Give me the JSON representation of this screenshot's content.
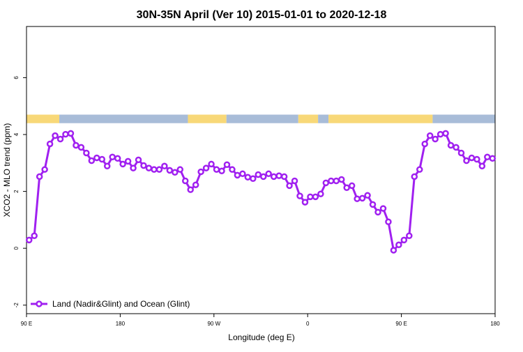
{
  "chart_data": {
    "type": "line",
    "title": "30N-35N April (Ver 10)   2015-01-01 to 2020-12-18",
    "x_label": "Longitude (deg E)",
    "y_label": "XCO2 - MLO trend (ppm)",
    "x": [
      92.5,
      97.5,
      102.5,
      107.5,
      112.5,
      117.5,
      122.5,
      127.5,
      132.5,
      137.5,
      142.5,
      147.5,
      152.5,
      157.5,
      162.5,
      167.5,
      172.5,
      177.5,
      182.5,
      187.5,
      192.5,
      197.5,
      202.5,
      207.5,
      212.5,
      217.5,
      222.5,
      227.5,
      232.5,
      237.5,
      242.5,
      247.5,
      252.5,
      257.5,
      262.5,
      267.5,
      272.5,
      277.5,
      282.5,
      287.5,
      292.5,
      297.5,
      302.5,
      307.5,
      312.5,
      317.5,
      322.5,
      327.5,
      332.5,
      337.5,
      342.5,
      347.5,
      352.5,
      357.5,
      362.5,
      367.5,
      372.5,
      377.5,
      382.5,
      387.5,
      392.5,
      397.5,
      402.5,
      407.5,
      412.5,
      417.5,
      422.5,
      427.5,
      432.5,
      437.5,
      442.5,
      447.5,
      452.5,
      457.5,
      462.5,
      467.5,
      472.5,
      477.5,
      482.5,
      487.5,
      492.5,
      497.5,
      502.5,
      507.5,
      512.5,
      517.5,
      522.5,
      527.5,
      532.5,
      537.5
    ],
    "series": [
      {
        "name": "Land (Nadir&Glint) and Ocean (Glint)",
        "color": "#a020f0",
        "values": [
          0.29,
          0.44,
          2.52,
          2.77,
          3.67,
          3.96,
          3.84,
          4.01,
          4.04,
          3.62,
          3.55,
          3.35,
          3.08,
          3.18,
          3.13,
          2.89,
          3.21,
          3.16,
          2.96,
          3.06,
          2.82,
          3.11,
          2.91,
          2.82,
          2.77,
          2.77,
          2.89,
          2.74,
          2.67,
          2.77,
          2.37,
          2.06,
          2.23,
          2.69,
          2.82,
          2.96,
          2.77,
          2.72,
          2.94,
          2.77,
          2.57,
          2.62,
          2.5,
          2.45,
          2.59,
          2.52,
          2.62,
          2.52,
          2.55,
          2.52,
          2.2,
          2.37,
          1.84,
          1.62,
          1.81,
          1.81,
          1.91,
          2.3,
          2.37,
          2.37,
          2.42,
          2.13,
          2.2,
          1.74,
          1.76,
          1.86,
          1.54,
          1.27,
          1.4,
          0.93,
          -0.07,
          0.12,
          0.29,
          0.44,
          2.52,
          2.77,
          3.67,
          3.96,
          3.84,
          4.01,
          4.04,
          3.62,
          3.55,
          3.35,
          3.08,
          3.18,
          3.13,
          2.89,
          3.21,
          3.16
        ]
      }
    ],
    "strip": {
      "ylim": [
        4.4,
        4.7
      ],
      "segments": [
        {
          "from": 90,
          "to": 121.5,
          "color": "#f8d878"
        },
        {
          "from": 121.5,
          "to": 245,
          "color": "#a8bcd8"
        },
        {
          "from": 245,
          "to": 282,
          "color": "#f8d878"
        },
        {
          "from": 282,
          "to": 351,
          "color": "#a8bcd8"
        },
        {
          "from": 351,
          "to": 370,
          "color": "#f8d878"
        },
        {
          "from": 370,
          "to": 380,
          "color": "#a8bcd8"
        },
        {
          "from": 380,
          "to": 480,
          "color": "#f8d878"
        },
        {
          "from": 480,
          "to": 540,
          "color": "#a8bcd8"
        }
      ]
    },
    "xlim": [
      90,
      540
    ],
    "xticks": [
      {
        "value": 90,
        "label": "90 E"
      },
      180,
      {
        "value": 270,
        "label": "90 W"
      },
      {
        "value": 360,
        "label": "0"
      },
      {
        "value": 450,
        "label": "90 E"
      },
      {
        "value": 540,
        "label": "180"
      }
    ],
    "ylim": [
      -2.3,
      7.8
    ],
    "yticks": [
      -2,
      0,
      2,
      4,
      6
    ],
    "legend": "bottom-left"
  }
}
